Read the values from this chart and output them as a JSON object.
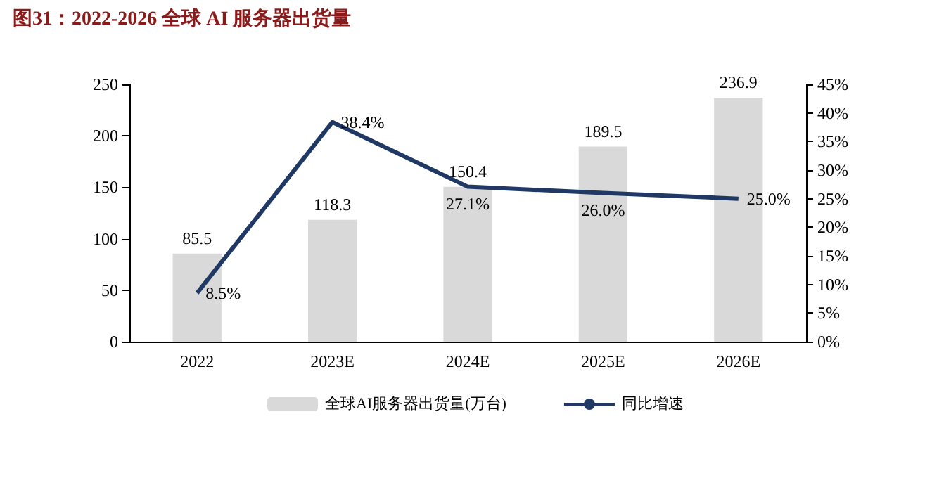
{
  "chart_data": {
    "type": "bar",
    "title": "图31：2022-2026 全球 AI 服务器出货量",
    "categories": [
      "2022",
      "2023E",
      "2024E",
      "2025E",
      "2026E"
    ],
    "series": [
      {
        "name": "全球AI服务器出货量(万台)",
        "color": "#d9d9d9",
        "values": [
          85.5,
          118.3,
          150.4,
          189.5,
          236.9
        ],
        "value_labels": [
          "85.5",
          "118.3",
          "150.4",
          "189.5",
          "236.9"
        ]
      },
      {
        "name": "同比增速",
        "type": "line",
        "axis": "y2",
        "color": "#1f3864",
        "values": [
          8.5,
          38.4,
          27.1,
          26.0,
          25.0
        ],
        "value_labels": [
          "8.5%",
          "38.4%",
          "27.1%",
          "26.0%",
          "25.0%"
        ]
      }
    ],
    "ylim": [
      0,
      250
    ],
    "yticks": [
      0,
      50,
      100,
      150,
      200,
      250
    ],
    "y2lim": [
      0,
      45
    ],
    "y2ticks": [
      {
        "value": 0,
        "label": "0%"
      },
      {
        "value": 5,
        "label": "5%"
      },
      {
        "value": 10,
        "label": "10%"
      },
      {
        "value": 15,
        "label": "15%"
      },
      {
        "value": 20,
        "label": "20%"
      },
      {
        "value": 25,
        "label": "25%"
      },
      {
        "value": 30,
        "label": "30%"
      },
      {
        "value": 35,
        "label": "35%"
      },
      {
        "value": 40,
        "label": "40%"
      },
      {
        "value": 45,
        "label": "45%"
      }
    ],
    "legend": "bottom",
    "grid": false,
    "marker": "none"
  }
}
